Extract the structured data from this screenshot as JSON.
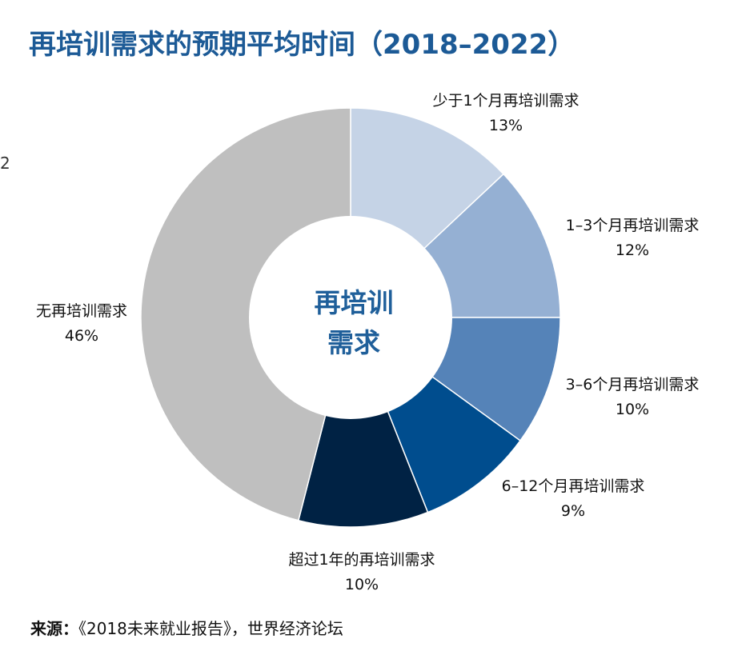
{
  "title": "再培训需求的预期平均时间（2018–2022）",
  "edge_mark": "2",
  "source": {
    "label": "来源：",
    "text": "《2018未来就业报告》，世界经济论坛"
  },
  "chart_data": {
    "type": "pie",
    "style": "donut",
    "center_label": [
      "再培训",
      "需求"
    ],
    "slices": [
      {
        "name": "少于1个月再培训需求",
        "pct_label": "13%",
        "value": 13,
        "color": "#c5d3e6"
      },
      {
        "name": "1–3个月再培训需求",
        "pct_label": "12%",
        "value": 12,
        "color": "#95b0d3"
      },
      {
        "name": "3–6个月再培训需求",
        "pct_label": "10%",
        "value": 10,
        "color": "#5583b8"
      },
      {
        "name": "6–12个月再培训需求",
        "pct_label": "9%",
        "value": 9,
        "color": "#004d8e"
      },
      {
        "name": "超过1年的再培训需求",
        "pct_label": "10%",
        "value": 10,
        "color": "#002244"
      },
      {
        "name": "无再培训需求",
        "pct_label": "46%",
        "value": 46,
        "color": "#bfbfbf"
      }
    ]
  }
}
